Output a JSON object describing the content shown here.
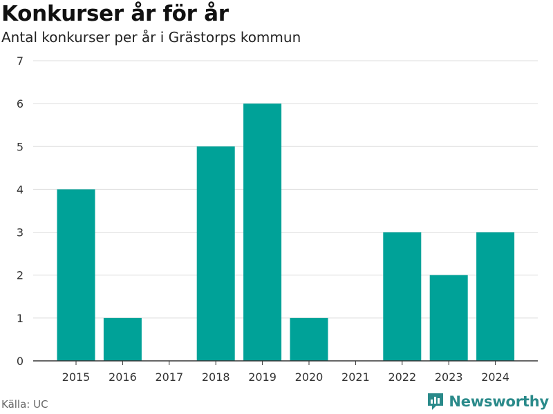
{
  "header": {
    "title": "Konkurser år för år",
    "subtitle": "Antal konkurser per år i Grästorps kommun"
  },
  "footer": {
    "source": "Källa: UC",
    "brand": "Newsworthy"
  },
  "colors": {
    "bar": "#00a298",
    "grid": "#dddddd",
    "axis": "#333333",
    "brand": "#2a8a8a"
  },
  "chart_data": {
    "type": "bar",
    "categories": [
      "2015",
      "2016",
      "2017",
      "2018",
      "2019",
      "2020",
      "2021",
      "2022",
      "2023",
      "2024"
    ],
    "values": [
      4,
      1,
      0,
      5,
      6,
      1,
      0,
      3,
      2,
      3
    ],
    "title": "Konkurser år för år",
    "subtitle": "Antal konkurser per år i Grästorps kommun",
    "xlabel": "",
    "ylabel": "",
    "ylim": [
      0,
      7
    ],
    "yticks": [
      0,
      1,
      2,
      3,
      4,
      5,
      6,
      7
    ],
    "grid": true,
    "legend": "none"
  }
}
